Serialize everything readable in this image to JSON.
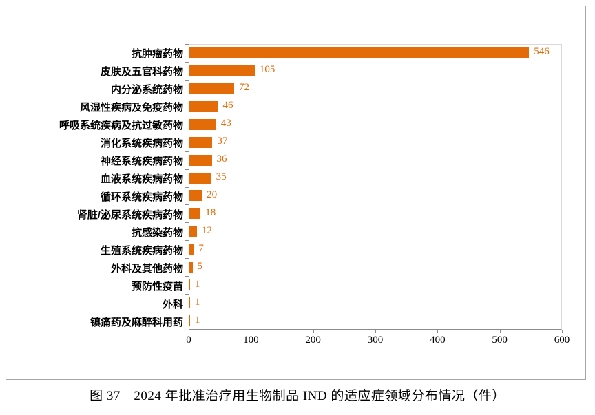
{
  "figure_caption": "图 37　2024 年批准治疗用生物制品 IND 的适应症领域分布情况（件）",
  "colors": {
    "bar": "#e36c09",
    "value_label": "#e36c09",
    "axis_line": "#8c8c8c",
    "plot_border": "#d9d9d9",
    "frame_border": "#a6a6a6",
    "text": "#000000"
  },
  "chart_data": {
    "type": "bar",
    "orientation": "horizontal",
    "title": "",
    "xlabel": "",
    "ylabel": "",
    "xlim": [
      0,
      600
    ],
    "xticks": [
      0,
      100,
      200,
      300,
      400,
      500,
      600
    ],
    "grid": false,
    "legend": "none",
    "data_labels": true,
    "categories": [
      "抗肿瘤药物",
      "皮肤及五官科药物",
      "内分泌系统药物",
      "风湿性疾病及免疫药物",
      "呼吸系统疾病及抗过敏药物",
      "消化系统疾病药物",
      "神经系统疾病药物",
      "血液系统疾病药物",
      "循环系统疾病药物",
      "肾脏/泌尿系统疾病药物",
      "抗感染药物",
      "生殖系统疾病药物",
      "外科及其他药物",
      "预防性疫苗",
      "外科",
      "镇痛药及麻醉科用药"
    ],
    "values": [
      546,
      105,
      72,
      46,
      43,
      37,
      36,
      35,
      20,
      18,
      12,
      7,
      5,
      1,
      1,
      1
    ]
  }
}
